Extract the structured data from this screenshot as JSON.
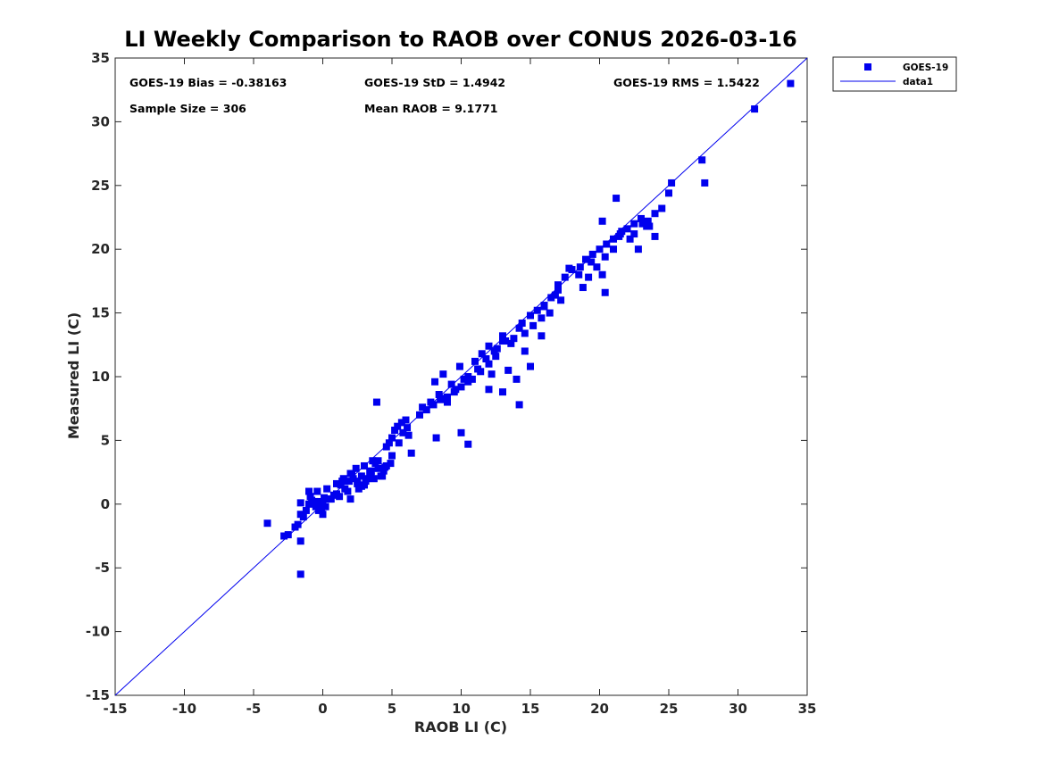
{
  "chart_data": {
    "type": "scatter",
    "title": "LI Weekly Comparison to RAOB over CONUS 2026-03-16",
    "xlabel": "RAOB LI (C)",
    "ylabel": "Measured LI (C)",
    "xlim": [
      -15,
      35
    ],
    "ylim": [
      -15,
      35
    ],
    "xticks": [
      "-15",
      "-10",
      "-5",
      "0",
      "5",
      "10",
      "15",
      "20",
      "25",
      "30",
      "35"
    ],
    "yticks": [
      "-15",
      "-10",
      "-5",
      "0",
      "5",
      "10",
      "15",
      "20",
      "25",
      "30",
      "35"
    ],
    "grid": false,
    "legend_position": "outside-top-right",
    "annotations": {
      "bias": "GOES-19 Bias = -0.38163",
      "std": "GOES-19 StD = 1.4942",
      "rms": "GOES-19 RMS = 1.5422",
      "sample": "Sample Size = 306",
      "mean": "Mean RAOB = 9.1771"
    },
    "colors": {
      "marker": "#0000ee",
      "line": "#0000ee"
    },
    "series": [
      {
        "name": "GOES-19",
        "kind": "scatter",
        "marker": "square",
        "x": [
          -4.0,
          -2.8,
          -2.5,
          -2.0,
          -1.8,
          -1.6,
          -1.4,
          -1.6,
          -1.2,
          -1.0,
          -0.8,
          -0.5,
          -0.3,
          -0.2,
          -0.1,
          0.0,
          0.1,
          0.2,
          0.5,
          0.8,
          -0.9,
          -0.6,
          -0.4,
          0.0,
          0.3,
          0.6,
          1.0,
          1.3,
          1.6,
          1.9,
          2.2,
          2.5,
          2.8,
          3.1,
          3.4,
          3.7,
          4.0,
          4.3,
          4.6,
          4.9,
          1.0,
          1.5,
          2.0,
          2.5,
          3.0,
          3.5,
          4.0,
          4.5,
          5.0,
          1.2,
          1.8,
          2.4,
          3.0,
          3.6,
          4.2,
          2.0,
          2.6,
          3.2,
          3.8,
          4.4,
          1.4,
          2.1,
          2.8,
          3.5,
          4.6,
          5.0,
          5.5,
          5.8,
          6.1,
          6.4,
          5.2,
          5.7,
          6.2,
          4.8,
          5.4,
          6.0,
          7.0,
          7.5,
          8.0,
          8.5,
          9.0,
          9.5,
          10.0,
          10.5,
          7.2,
          7.8,
          8.4,
          9.0,
          9.6,
          10.2,
          8.1,
          8.7,
          9.3,
          9.9,
          10.5,
          11.0,
          11.5,
          12.0,
          12.5,
          13.0,
          11.2,
          11.8,
          12.4,
          13.0,
          13.6,
          14.2,
          10.8,
          11.4,
          12.0,
          12.6,
          13.2,
          13.8,
          14.4,
          15.0,
          15.5,
          16.0,
          16.5,
          17.0,
          14.6,
          15.2,
          15.8,
          16.4,
          17.0,
          17.5,
          18.0,
          18.5,
          19.0,
          19.5,
          20.0,
          20.5,
          21.0,
          21.5,
          22.0,
          22.5,
          23.0,
          23.5,
          24.0,
          24.5,
          25.0,
          19.2,
          19.8,
          20.4,
          21.0,
          21.6,
          22.2,
          22.8,
          23.4,
          24.0,
          18.8,
          20.2,
          21.2,
          22.5,
          25.2,
          27.4,
          27.6,
          31.2,
          33.8,
          20.4,
          -1.6,
          -1.6,
          -1.0,
          3.9,
          8.5,
          10.5,
          8.2,
          10.0,
          14.2,
          12.0,
          13.0,
          14.0,
          15.0,
          16.0,
          12.2,
          13.4,
          14.6,
          15.8,
          17.2,
          17.8,
          16.8,
          18.6,
          19.4,
          20.2,
          21.4,
          23.1,
          23.6
        ],
        "y": [
          -1.5,
          -2.5,
          -2.4,
          -1.8,
          -1.6,
          -0.8,
          -1.0,
          -2.9,
          -0.5,
          0.0,
          0.3,
          -0.2,
          -0.5,
          0.2,
          -0.4,
          -0.8,
          0.5,
          -0.2,
          0.4,
          0.7,
          0.6,
          0.2,
          1.0,
          0.0,
          1.2,
          0.4,
          0.8,
          1.5,
          1.2,
          1.8,
          2.0,
          1.6,
          2.2,
          1.8,
          2.5,
          2.0,
          2.8,
          2.2,
          3.0,
          3.2,
          1.6,
          2.0,
          2.4,
          1.8,
          3.0,
          2.6,
          3.4,
          2.9,
          3.8,
          0.6,
          1.0,
          2.8,
          1.5,
          3.4,
          2.2,
          0.4,
          1.2,
          2.0,
          3.2,
          2.6,
          1.8,
          2.4,
          1.4,
          2.2,
          4.5,
          5.2,
          4.8,
          5.6,
          6.0,
          4.0,
          5.8,
          6.4,
          5.4,
          4.8,
          6.1,
          6.6,
          7.0,
          7.4,
          7.8,
          8.2,
          8.4,
          8.8,
          9.2,
          9.6,
          7.6,
          8.0,
          8.6,
          8.0,
          9.0,
          9.8,
          9.6,
          10.2,
          9.4,
          10.8,
          10.0,
          11.2,
          11.8,
          12.4,
          11.6,
          12.8,
          10.6,
          11.4,
          12.0,
          13.2,
          12.6,
          13.8,
          9.8,
          10.4,
          11.0,
          12.2,
          12.8,
          13.0,
          14.2,
          14.8,
          15.2,
          15.6,
          16.2,
          16.8,
          13.4,
          14.0,
          14.6,
          15.0,
          17.2,
          17.8,
          18.4,
          18.0,
          19.2,
          19.6,
          20.0,
          20.4,
          20.8,
          21.2,
          21.6,
          22.0,
          22.4,
          22.2,
          22.8,
          23.2,
          24.4,
          17.8,
          18.6,
          19.4,
          20.0,
          21.4,
          20.8,
          20.0,
          21.8,
          21.0,
          17.0,
          22.2,
          24.0,
          21.2,
          25.2,
          27.0,
          25.2,
          31.0,
          33.0,
          16.6,
          -5.5,
          0.1,
          1.0,
          8.0,
          8.3,
          4.7,
          5.2,
          5.6,
          7.8,
          9.0,
          8.8,
          9.8,
          10.8,
          15.5,
          10.2,
          10.5,
          12.0,
          13.2,
          16.0,
          18.5,
          16.4,
          18.6,
          19.0,
          18.0,
          21.0,
          22.0,
          21.8
        ]
      },
      {
        "name": "data1",
        "kind": "line",
        "x": [
          -15,
          35
        ],
        "y": [
          -15,
          35
        ]
      }
    ]
  }
}
